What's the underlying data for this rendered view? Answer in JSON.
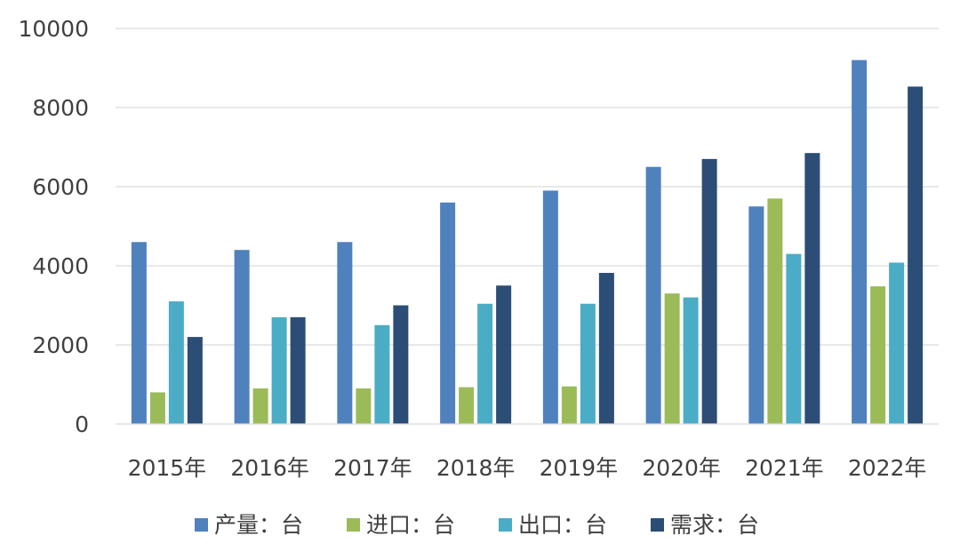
{
  "chart_data": {
    "type": "bar",
    "title": "",
    "xlabel": "",
    "ylabel": "",
    "categories": [
      "2015年",
      "2016年",
      "2017年",
      "2018年",
      "2019年",
      "2020年",
      "2021年",
      "2022年"
    ],
    "ylim": [
      0,
      10000
    ],
    "yticks": [
      "0",
      "2000",
      "4000",
      "6000",
      "8000",
      "10000"
    ],
    "grid": "horizontal",
    "legend_position": "bottom",
    "series": [
      {
        "name": "产量：台",
        "color": "#4F81BD",
        "values": [
          4600,
          4400,
          4600,
          5600,
          5900,
          6500,
          5500,
          9200
        ]
      },
      {
        "name": "进口：台",
        "color": "#9BBB59",
        "values": [
          800,
          900,
          900,
          930,
          950,
          3300,
          5700,
          3480
        ]
      },
      {
        "name": "出口：台",
        "color": "#4BACC6",
        "values": [
          3100,
          2700,
          2500,
          3040,
          3040,
          3200,
          4300,
          4080
        ]
      },
      {
        "name": "需求：台",
        "color": "#2C4D75",
        "values": [
          2200,
          2700,
          3000,
          3500,
          3820,
          6700,
          6850,
          8530
        ]
      }
    ]
  }
}
